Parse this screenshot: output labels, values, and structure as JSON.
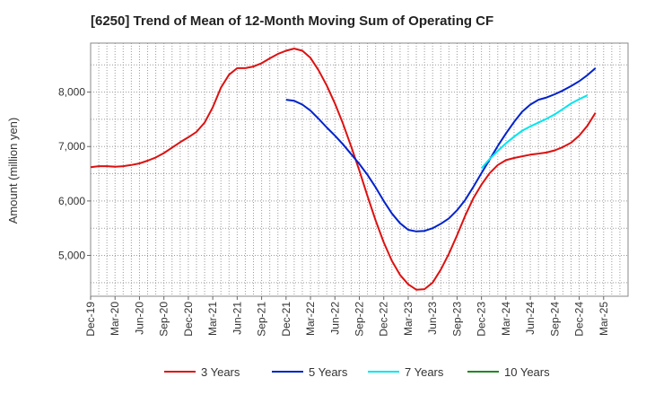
{
  "chart_data": {
    "type": "line",
    "title": "[6250]  Trend of Mean of 12-Month Moving Sum of Operating CF",
    "xlabel": "",
    "ylabel": "Amount (million yen)",
    "ylim": [
      4250,
      8900
    ],
    "yticks": [
      5000,
      6000,
      7000,
      8000
    ],
    "ytick_labels": [
      "5,000",
      "6,000",
      "7,000",
      "8,000"
    ],
    "x_range": [
      0,
      66
    ],
    "x_labels": [
      "Dec-19",
      "Mar-20",
      "Jun-20",
      "Sep-20",
      "Dec-20",
      "Mar-21",
      "Jun-21",
      "Sep-21",
      "Dec-21",
      "Mar-22",
      "Jun-22",
      "Sep-22",
      "Dec-22",
      "Mar-23",
      "Jun-23",
      "Sep-23",
      "Dec-23",
      "Mar-24",
      "Jun-24",
      "Sep-24",
      "Dec-24",
      "Mar-25"
    ],
    "grid": true,
    "legend_position": "bottom",
    "series": [
      {
        "name": "3 Years",
        "color": "#dd1111",
        "x_start": 0,
        "values": [
          6620,
          6640,
          6640,
          6630,
          6640,
          6660,
          6690,
          6740,
          6800,
          6880,
          6980,
          7080,
          7170,
          7270,
          7440,
          7720,
          8080,
          8320,
          8440,
          8440,
          8470,
          8530,
          8620,
          8700,
          8760,
          8800,
          8760,
          8630,
          8400,
          8120,
          7790,
          7420,
          7000,
          6560,
          6090,
          5640,
          5240,
          4900,
          4640,
          4470,
          4370,
          4380,
          4500,
          4740,
          5030,
          5370,
          5730,
          6050,
          6300,
          6510,
          6660,
          6750,
          6790,
          6820,
          6850,
          6870,
          6890,
          6930,
          6990,
          7070,
          7200,
          7380,
          7620
        ]
      },
      {
        "name": "5 Years",
        "color": "#0022cc",
        "x_start": 24,
        "values": [
          7860,
          7840,
          7770,
          7660,
          7510,
          7350,
          7200,
          7040,
          6860,
          6680,
          6480,
          6250,
          6000,
          5770,
          5590,
          5470,
          5440,
          5450,
          5500,
          5580,
          5680,
          5830,
          6020,
          6260,
          6510,
          6760,
          7010,
          7240,
          7450,
          7640,
          7770,
          7860,
          7900,
          7960,
          8030,
          8110,
          8200,
          8310,
          8440
        ]
      },
      {
        "name": "7 Years",
        "color": "#00e5ee",
        "x_start": 48,
        "values": [
          6600,
          6770,
          6920,
          7060,
          7180,
          7290,
          7370,
          7440,
          7510,
          7590,
          7690,
          7790,
          7870,
          7940
        ]
      },
      {
        "name": "10 Years",
        "color": "#228822",
        "x_start": 0,
        "values": []
      }
    ]
  }
}
